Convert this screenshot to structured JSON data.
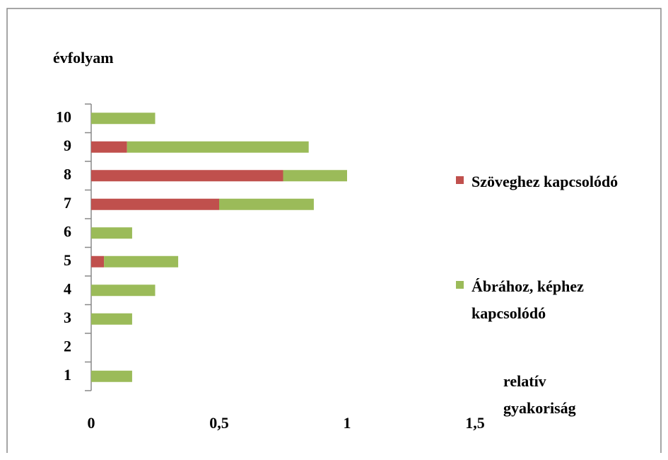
{
  "chart_data": {
    "type": "bar",
    "orientation": "horizontal",
    "stacked": true,
    "y_label": "évfolyam",
    "x_label": "relatív gyakoriság",
    "categories": [
      "1",
      "2",
      "3",
      "4",
      "5",
      "6",
      "7",
      "8",
      "9",
      "10"
    ],
    "series": [
      {
        "name": "Szöveghez kapcsolódó",
        "color": "#c0504d",
        "values": [
          0,
          0,
          0,
          0,
          0.05,
          0,
          0.5,
          0.75,
          0.14,
          0
        ]
      },
      {
        "name": "Ábrához, képhez kapcsolódó",
        "color": "#9bbb59",
        "values": [
          0.16,
          0,
          0.16,
          0.25,
          0.29,
          0.16,
          0.37,
          0.25,
          0.71,
          0.25
        ]
      }
    ],
    "xlim": [
      0,
      1.5
    ],
    "xticks": [
      0,
      {
        "value": 0.5,
        "label": "0,5"
      },
      1,
      {
        "value": 1.5,
        "label": "1,5"
      }
    ],
    "legend": "right"
  }
}
